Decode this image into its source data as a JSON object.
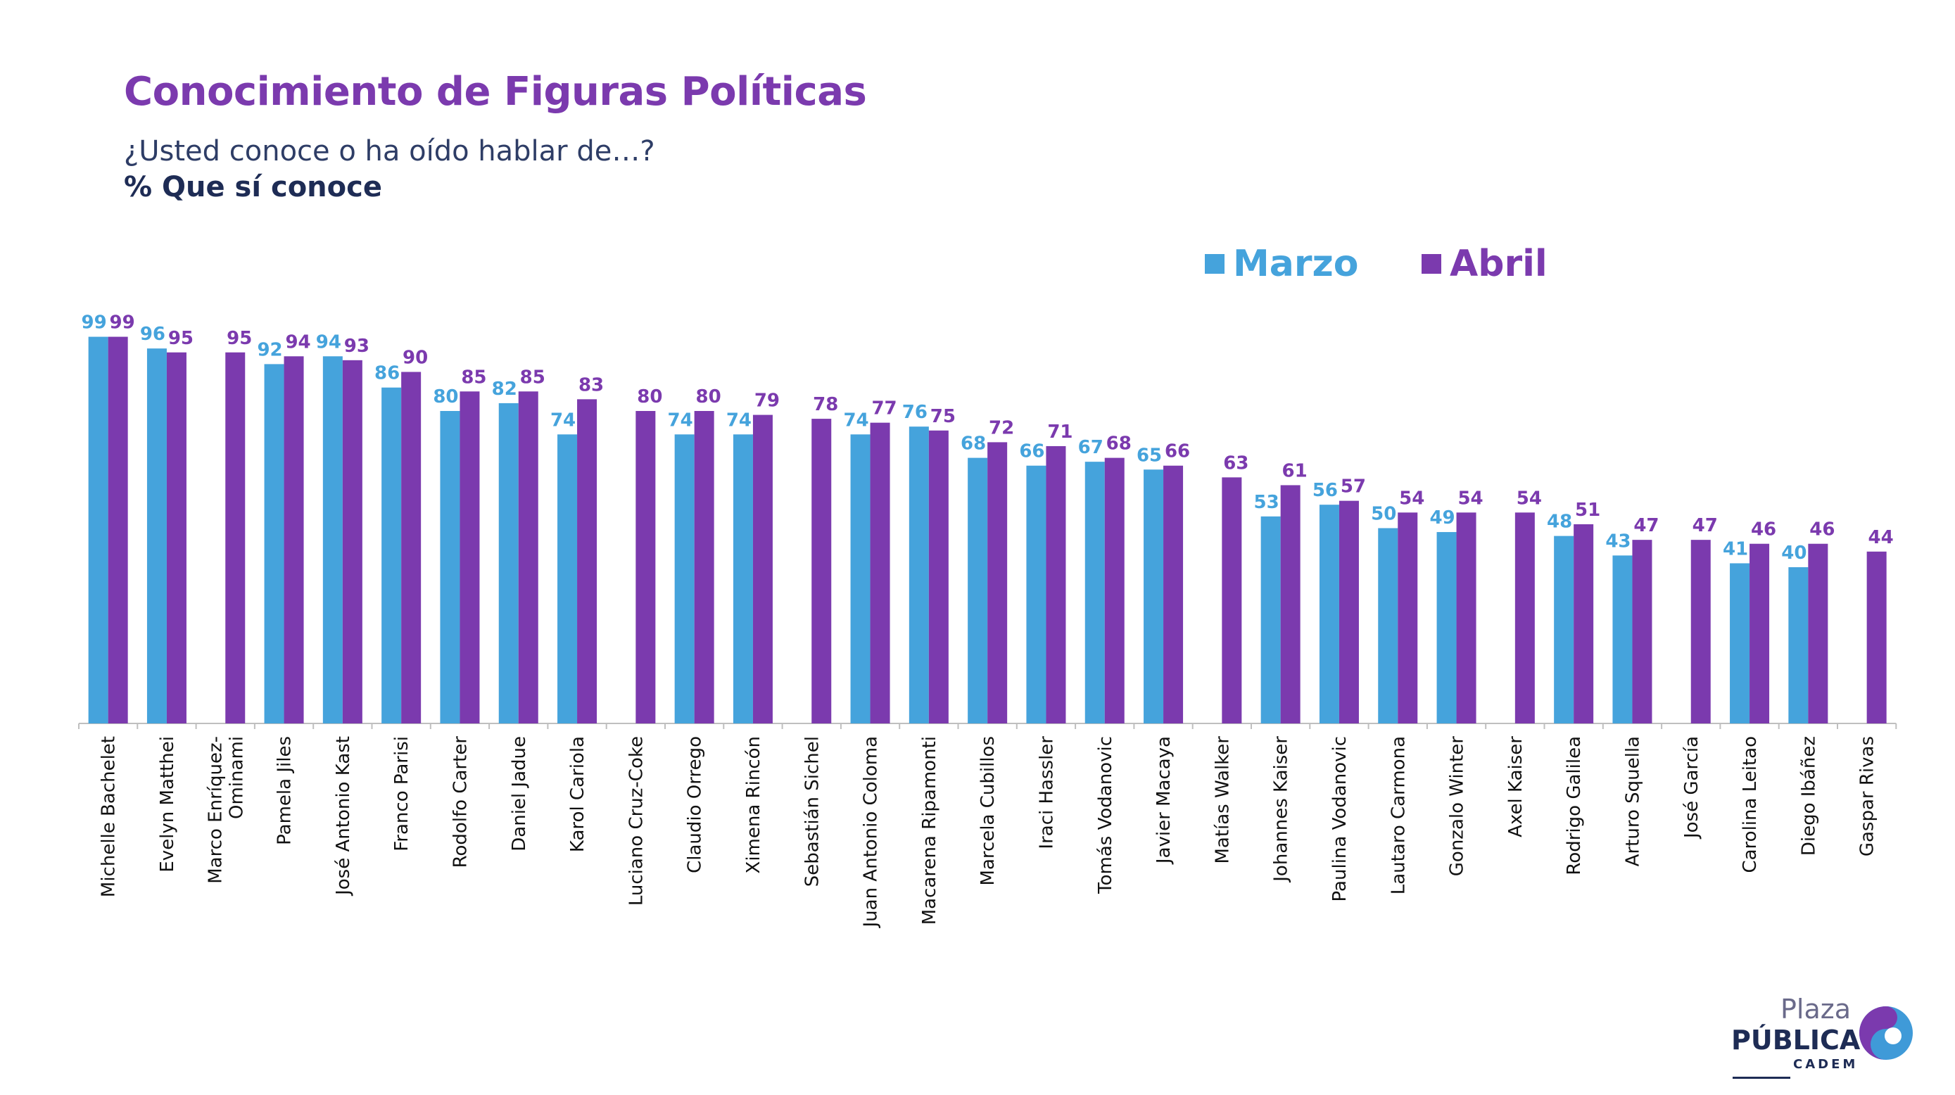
{
  "title": "Conocimiento de Figuras Políticas",
  "subtitle": "¿Usted conoce o ha oído hablar de…?",
  "subtitle2": "% Que sí conoce",
  "legend": {
    "marzo": "Marzo",
    "abril": "Abril"
  },
  "logo": {
    "line1": "Plaza",
    "line2": "PÚBLICA",
    "line3": "CADEM"
  },
  "colors": {
    "marzo": "#45A3DC",
    "abril": "#7B3AAE",
    "title": "#7B3AAE",
    "navy": "#1E2C55"
  },
  "chart_data": {
    "type": "bar",
    "title": "Conocimiento de Figuras Políticas",
    "xlabel": "",
    "ylabel": "",
    "ylim": [
      0,
      100
    ],
    "grid": false,
    "legend_position": "top-right",
    "categories": [
      "Michelle Bachelet",
      "Evelyn Matthei",
      "Marco Enríquez-Ominami",
      "Pamela Jiles",
      "José Antonio Kast",
      "Franco Parisi",
      "Rodolfo Carter",
      "Daniel Jadue",
      "Karol Cariola",
      "Luciano Cruz-Coke",
      "Claudio Orrego",
      "Ximena Rincón",
      "Sebastián Sichel",
      "Juan Antonio Coloma",
      "Macarena Ripamonti",
      "Marcela Cubillos",
      "Iraci Hassler",
      "Tomás Vodanovic",
      "Javier Macaya",
      "Matías Walker",
      "Johannes Kaiser",
      "Paulina Vodanovic",
      "Lautaro Carmona",
      "Gonzalo Winter",
      "Axel Kaiser",
      "Rodrigo Galilea",
      "Arturo Squella",
      "José García",
      "Carolina Leitao",
      "Diego Ibáñez",
      "Gaspar Rivas"
    ],
    "category_lines": [
      [
        "Michelle Bachelet"
      ],
      [
        "Evelyn Matthei"
      ],
      [
        "Marco Enríquez-",
        "Ominami"
      ],
      [
        "Pamela Jiles"
      ],
      [
        "José Antonio Kast"
      ],
      [
        "Franco Parisi"
      ],
      [
        "Rodolfo Carter"
      ],
      [
        "Daniel Jadue"
      ],
      [
        "Karol Cariola"
      ],
      [
        "Luciano Cruz-Coke"
      ],
      [
        "Claudio Orrego"
      ],
      [
        "Ximena Rincón"
      ],
      [
        "Sebastián Sichel"
      ],
      [
        "Juan Antonio Coloma"
      ],
      [
        "Macarena Ripamonti"
      ],
      [
        "Marcela Cubillos"
      ],
      [
        "Iraci Hassler"
      ],
      [
        "Tomás Vodanovic"
      ],
      [
        "Javier Macaya"
      ],
      [
        "Matías Walker"
      ],
      [
        "Johannes Kaiser"
      ],
      [
        "Paulina Vodanovic"
      ],
      [
        "Lautaro Carmona"
      ],
      [
        "Gonzalo Winter"
      ],
      [
        "Axel Kaiser"
      ],
      [
        "Rodrigo Galilea"
      ],
      [
        "Arturo Squella"
      ],
      [
        "José García"
      ],
      [
        "Carolina Leitao"
      ],
      [
        "Diego Ibáñez"
      ],
      [
        "Gaspar Rivas"
      ]
    ],
    "series": [
      {
        "name": "Marzo",
        "values": [
          99,
          96,
          null,
          92,
          94,
          86,
          80,
          82,
          74,
          null,
          74,
          74,
          null,
          74,
          76,
          68,
          66,
          67,
          65,
          null,
          53,
          56,
          50,
          49,
          null,
          48,
          43,
          null,
          41,
          40,
          null
        ]
      },
      {
        "name": "Abril",
        "values": [
          99,
          95,
          95,
          94,
          93,
          90,
          85,
          85,
          83,
          80,
          80,
          79,
          78,
          77,
          75,
          72,
          71,
          68,
          66,
          63,
          61,
          57,
          54,
          54,
          54,
          51,
          47,
          47,
          46,
          46,
          44
        ]
      }
    ]
  }
}
